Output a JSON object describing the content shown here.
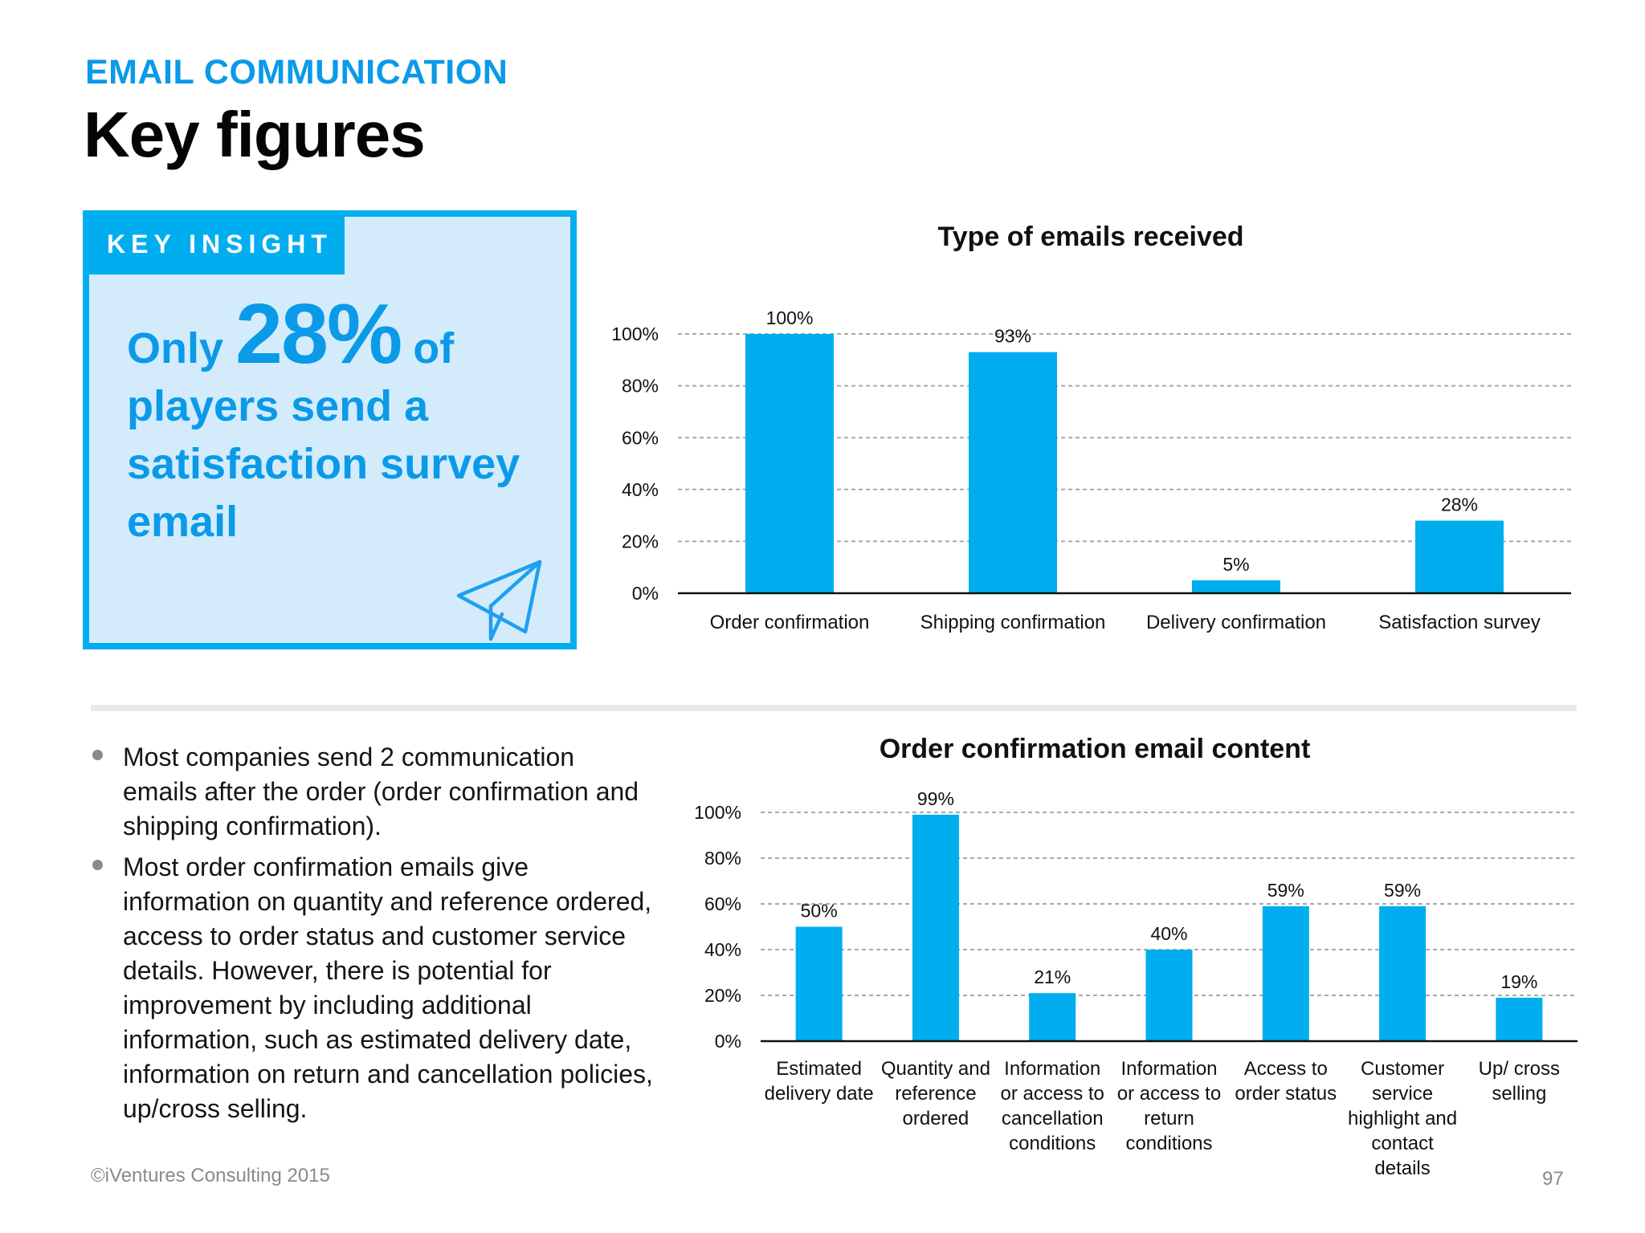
{
  "header": {
    "section_label": "EMAIL COMMUNICATION",
    "title": "Key figures"
  },
  "key_insight": {
    "tab_label": "KEY INSIGHT",
    "line1_prefix": "Only",
    "highlight_value": "28%",
    "line1_suffix": "of",
    "line2": "players send a",
    "line3": "satisfaction survey",
    "line4": "email",
    "icon": "paper-plane-icon"
  },
  "bullets": [
    "Most companies send 2 communication emails after the order (order confirmation and shipping confirmation).",
    "Most order confirmation emails give information on quantity and reference ordered, access to order status and customer service details. However, there is potential for improvement by including additional information, such as estimated delivery date, information on return and cancellation policies, up/cross selling."
  ],
  "footer": {
    "copyright": "©iVentures Consulting 2015",
    "page_number": "97"
  },
  "colors": {
    "accent": "#00aeef",
    "accent_text": "#0a9ae8",
    "insight_fill": "#d3ebfb",
    "gridline": "#a8a8a8",
    "axis": "#111111"
  },
  "chart_data": [
    {
      "type": "bar",
      "title": "Type of emails received",
      "xlabel": "",
      "ylabel": "",
      "ylim": [
        0,
        100
      ],
      "yticks": [
        "0%",
        "20%",
        "40%",
        "60%",
        "80%",
        "100%"
      ],
      "grid": true,
      "legend": "none",
      "categories": [
        [
          "Order confirmation"
        ],
        [
          "Shipping confirmation"
        ],
        [
          "Delivery confirmation"
        ],
        [
          "Satisfaction survey"
        ]
      ],
      "values": [
        100,
        93,
        5,
        28
      ],
      "data_labels": [
        "100%",
        "93%",
        "5%",
        "28%"
      ]
    },
    {
      "type": "bar",
      "title": "Order confirmation email content",
      "xlabel": "",
      "ylabel": "",
      "ylim": [
        0,
        100
      ],
      "yticks": [
        "0%",
        "20%",
        "40%",
        "60%",
        "80%",
        "100%"
      ],
      "grid": true,
      "legend": "none",
      "categories": [
        [
          "Estimated",
          "delivery date"
        ],
        [
          "Quantity and",
          "reference",
          "ordered"
        ],
        [
          "Information",
          "or access to",
          "cancellation",
          "conditions"
        ],
        [
          "Information",
          "or access to",
          "return",
          "conditions"
        ],
        [
          "Access to",
          "order status"
        ],
        [
          "Customer",
          "service",
          "highlight and",
          "contact",
          "details"
        ],
        [
          "Up/ cross",
          "selling"
        ]
      ],
      "values": [
        50,
        99,
        21,
        40,
        59,
        59,
        19
      ],
      "data_labels": [
        "50%",
        "99%",
        "21%",
        "40%",
        "59%",
        "59%",
        "19%"
      ]
    }
  ]
}
